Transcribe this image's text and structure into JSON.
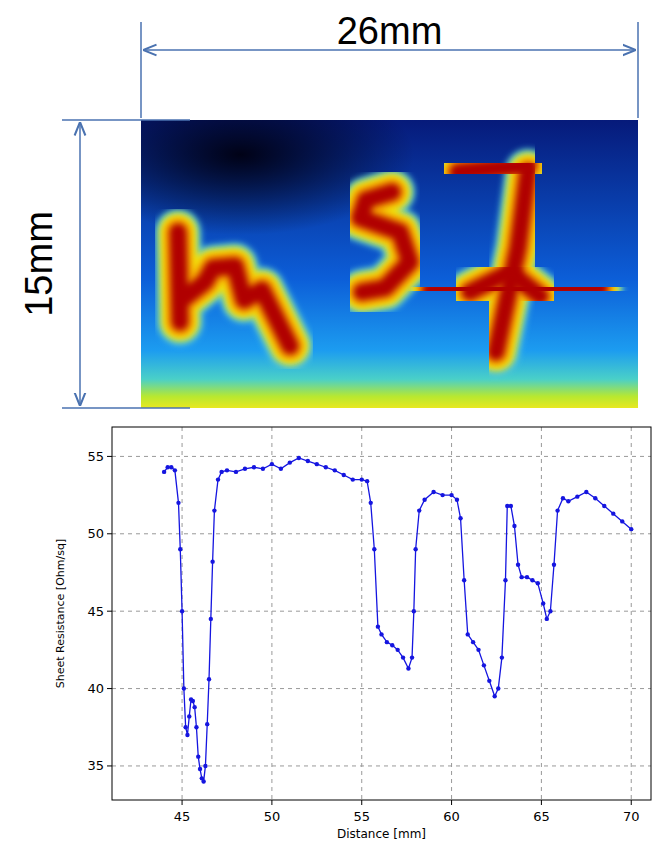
{
  "image": {
    "width_label": "26mm",
    "height_label": "15mm"
  },
  "chart_data": {
    "type": "line",
    "x_label": "Distance [mm]",
    "y_label": "Sheet Resistance [Ohm/sq]",
    "x": [
      44.0,
      44.2,
      44.4,
      44.6,
      44.8,
      44.9,
      45.0,
      45.1,
      45.2,
      45.3,
      45.4,
      45.5,
      45.6,
      45.7,
      45.8,
      45.9,
      46.0,
      46.1,
      46.2,
      46.3,
      46.4,
      46.5,
      46.6,
      46.7,
      46.8,
      47.0,
      47.2,
      47.5,
      48.0,
      48.5,
      49.0,
      49.5,
      50.0,
      50.5,
      51.0,
      51.5,
      52.0,
      52.5,
      53.0,
      53.5,
      54.0,
      54.5,
      55.0,
      55.3,
      55.5,
      55.7,
      55.9,
      56.1,
      56.4,
      56.7,
      57.0,
      57.3,
      57.6,
      57.8,
      57.9,
      58.0,
      58.2,
      58.5,
      59.0,
      59.5,
      60.0,
      60.3,
      60.5,
      60.7,
      60.9,
      61.2,
      61.5,
      61.8,
      62.1,
      62.4,
      62.6,
      62.8,
      63.0,
      63.1,
      63.3,
      63.5,
      63.7,
      63.9,
      64.2,
      64.5,
      64.8,
      65.1,
      65.3,
      65.5,
      65.7,
      65.9,
      66.2,
      66.5,
      67.0,
      67.5,
      68.0,
      68.5,
      69.0,
      69.5,
      70.0
    ],
    "values": [
      54.0,
      54.3,
      54.3,
      54.1,
      52.0,
      49.0,
      45.0,
      40.0,
      37.5,
      37.0,
      38.2,
      39.3,
      39.2,
      38.8,
      37.5,
      35.6,
      34.8,
      34.2,
      34.0,
      35.0,
      37.7,
      40.6,
      44.5,
      48.2,
      51.5,
      53.5,
      54.0,
      54.1,
      54.0,
      54.2,
      54.3,
      54.2,
      54.5,
      54.2,
      54.6,
      54.9,
      54.7,
      54.5,
      54.3,
      54.1,
      53.8,
      53.5,
      53.5,
      53.4,
      52.0,
      49.0,
      44.0,
      43.5,
      43.0,
      42.8,
      42.5,
      42.0,
      41.3,
      42.0,
      45.0,
      49.0,
      51.5,
      52.2,
      52.7,
      52.5,
      52.5,
      52.2,
      51.0,
      47.0,
      43.5,
      43.0,
      42.5,
      41.5,
      40.5,
      39.5,
      40.0,
      42.0,
      47.0,
      51.8,
      51.8,
      50.5,
      48.0,
      47.2,
      47.2,
      47.0,
      46.8,
      45.5,
      44.5,
      45.0,
      48.0,
      51.5,
      52.3,
      52.1,
      52.4,
      52.7,
      52.3,
      51.8,
      51.3,
      50.8,
      50.3
    ],
    "color": "#1515e0",
    "marker": "circle",
    "xlim": [
      41.1,
      71.1
    ],
    "ylim": [
      32.8,
      56.9
    ],
    "xticks": [
      45,
      50,
      55,
      60,
      65,
      70
    ],
    "yticks": [
      35,
      40,
      45,
      50,
      55
    ],
    "grid": true
  }
}
